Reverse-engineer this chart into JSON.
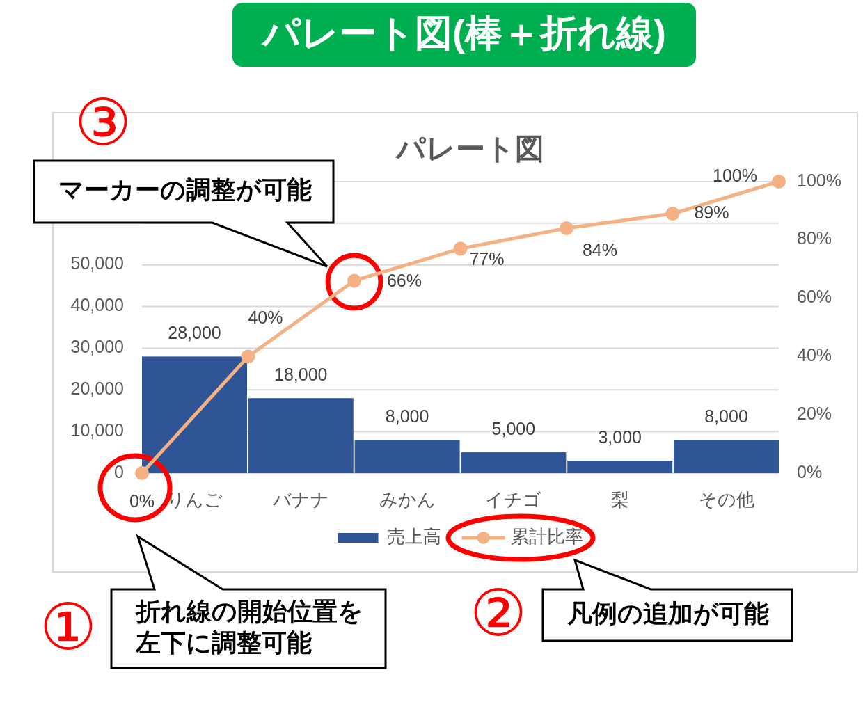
{
  "chart_data": [
    {
      "type": "bar",
      "title": "パレート図(棒＋折れ線)",
      "subtitle": "パレート図",
      "categories": [
        "りんご",
        "バナナ",
        "みかん",
        "イチゴ",
        "梨",
        "その他"
      ],
      "series": [
        {
          "name": "売上高",
          "color": "#2f5597",
          "values": [
            28000,
            18000,
            8000,
            5000,
            3000,
            8000
          ],
          "value_labels": [
            "28,000",
            "18,000",
            "8,000",
            "5,000",
            "3,000",
            "8,000"
          ]
        }
      ],
      "ylim": [
        0,
        70000
      ],
      "yticks": [
        0,
        {
          "value": 10000,
          "label": "10,000"
        },
        {
          "value": 20000,
          "label": "20,000"
        },
        {
          "value": 30000,
          "label": "30,000"
        },
        {
          "value": 40000,
          "label": "40,000"
        },
        {
          "value": 50000,
          "label": "50,000"
        },
        {
          "value": 60000,
          "label": null
        },
        {
          "value": 70000,
          "label": null
        }
      ],
      "grid": "y",
      "legend": "bottom",
      "annotations": [
        "③",
        "マーカーの調整が可能",
        "①",
        "折れ線の開始位置を左下に調整可能",
        "②",
        "凡例の追加が可能"
      ]
    },
    {
      "type": "line",
      "categories": [
        null,
        null,
        null,
        null,
        null,
        null,
        null
      ],
      "series": [
        {
          "name": "累計比率",
          "color": "#f4b183",
          "values": [
            0,
            40,
            66,
            77,
            84,
            89,
            100
          ],
          "value_labels": [
            "0%",
            "40%",
            "66%",
            "77%",
            "84%",
            "89%",
            "100%"
          ]
        }
      ],
      "ylim": [
        0,
        100
      ],
      "yticks": [
        {
          "value": 0,
          "label": "0%"
        },
        {
          "value": 20,
          "label": "20%"
        },
        {
          "value": 40,
          "label": "40%"
        },
        {
          "value": 60,
          "label": "60%"
        },
        {
          "value": 80,
          "label": "80%"
        },
        {
          "value": 100,
          "label": "100%"
        }
      ],
      "tick_labels": "y",
      "legend": "bottom",
      "marker": "circle",
      "line_style": "solid"
    }
  ]
}
